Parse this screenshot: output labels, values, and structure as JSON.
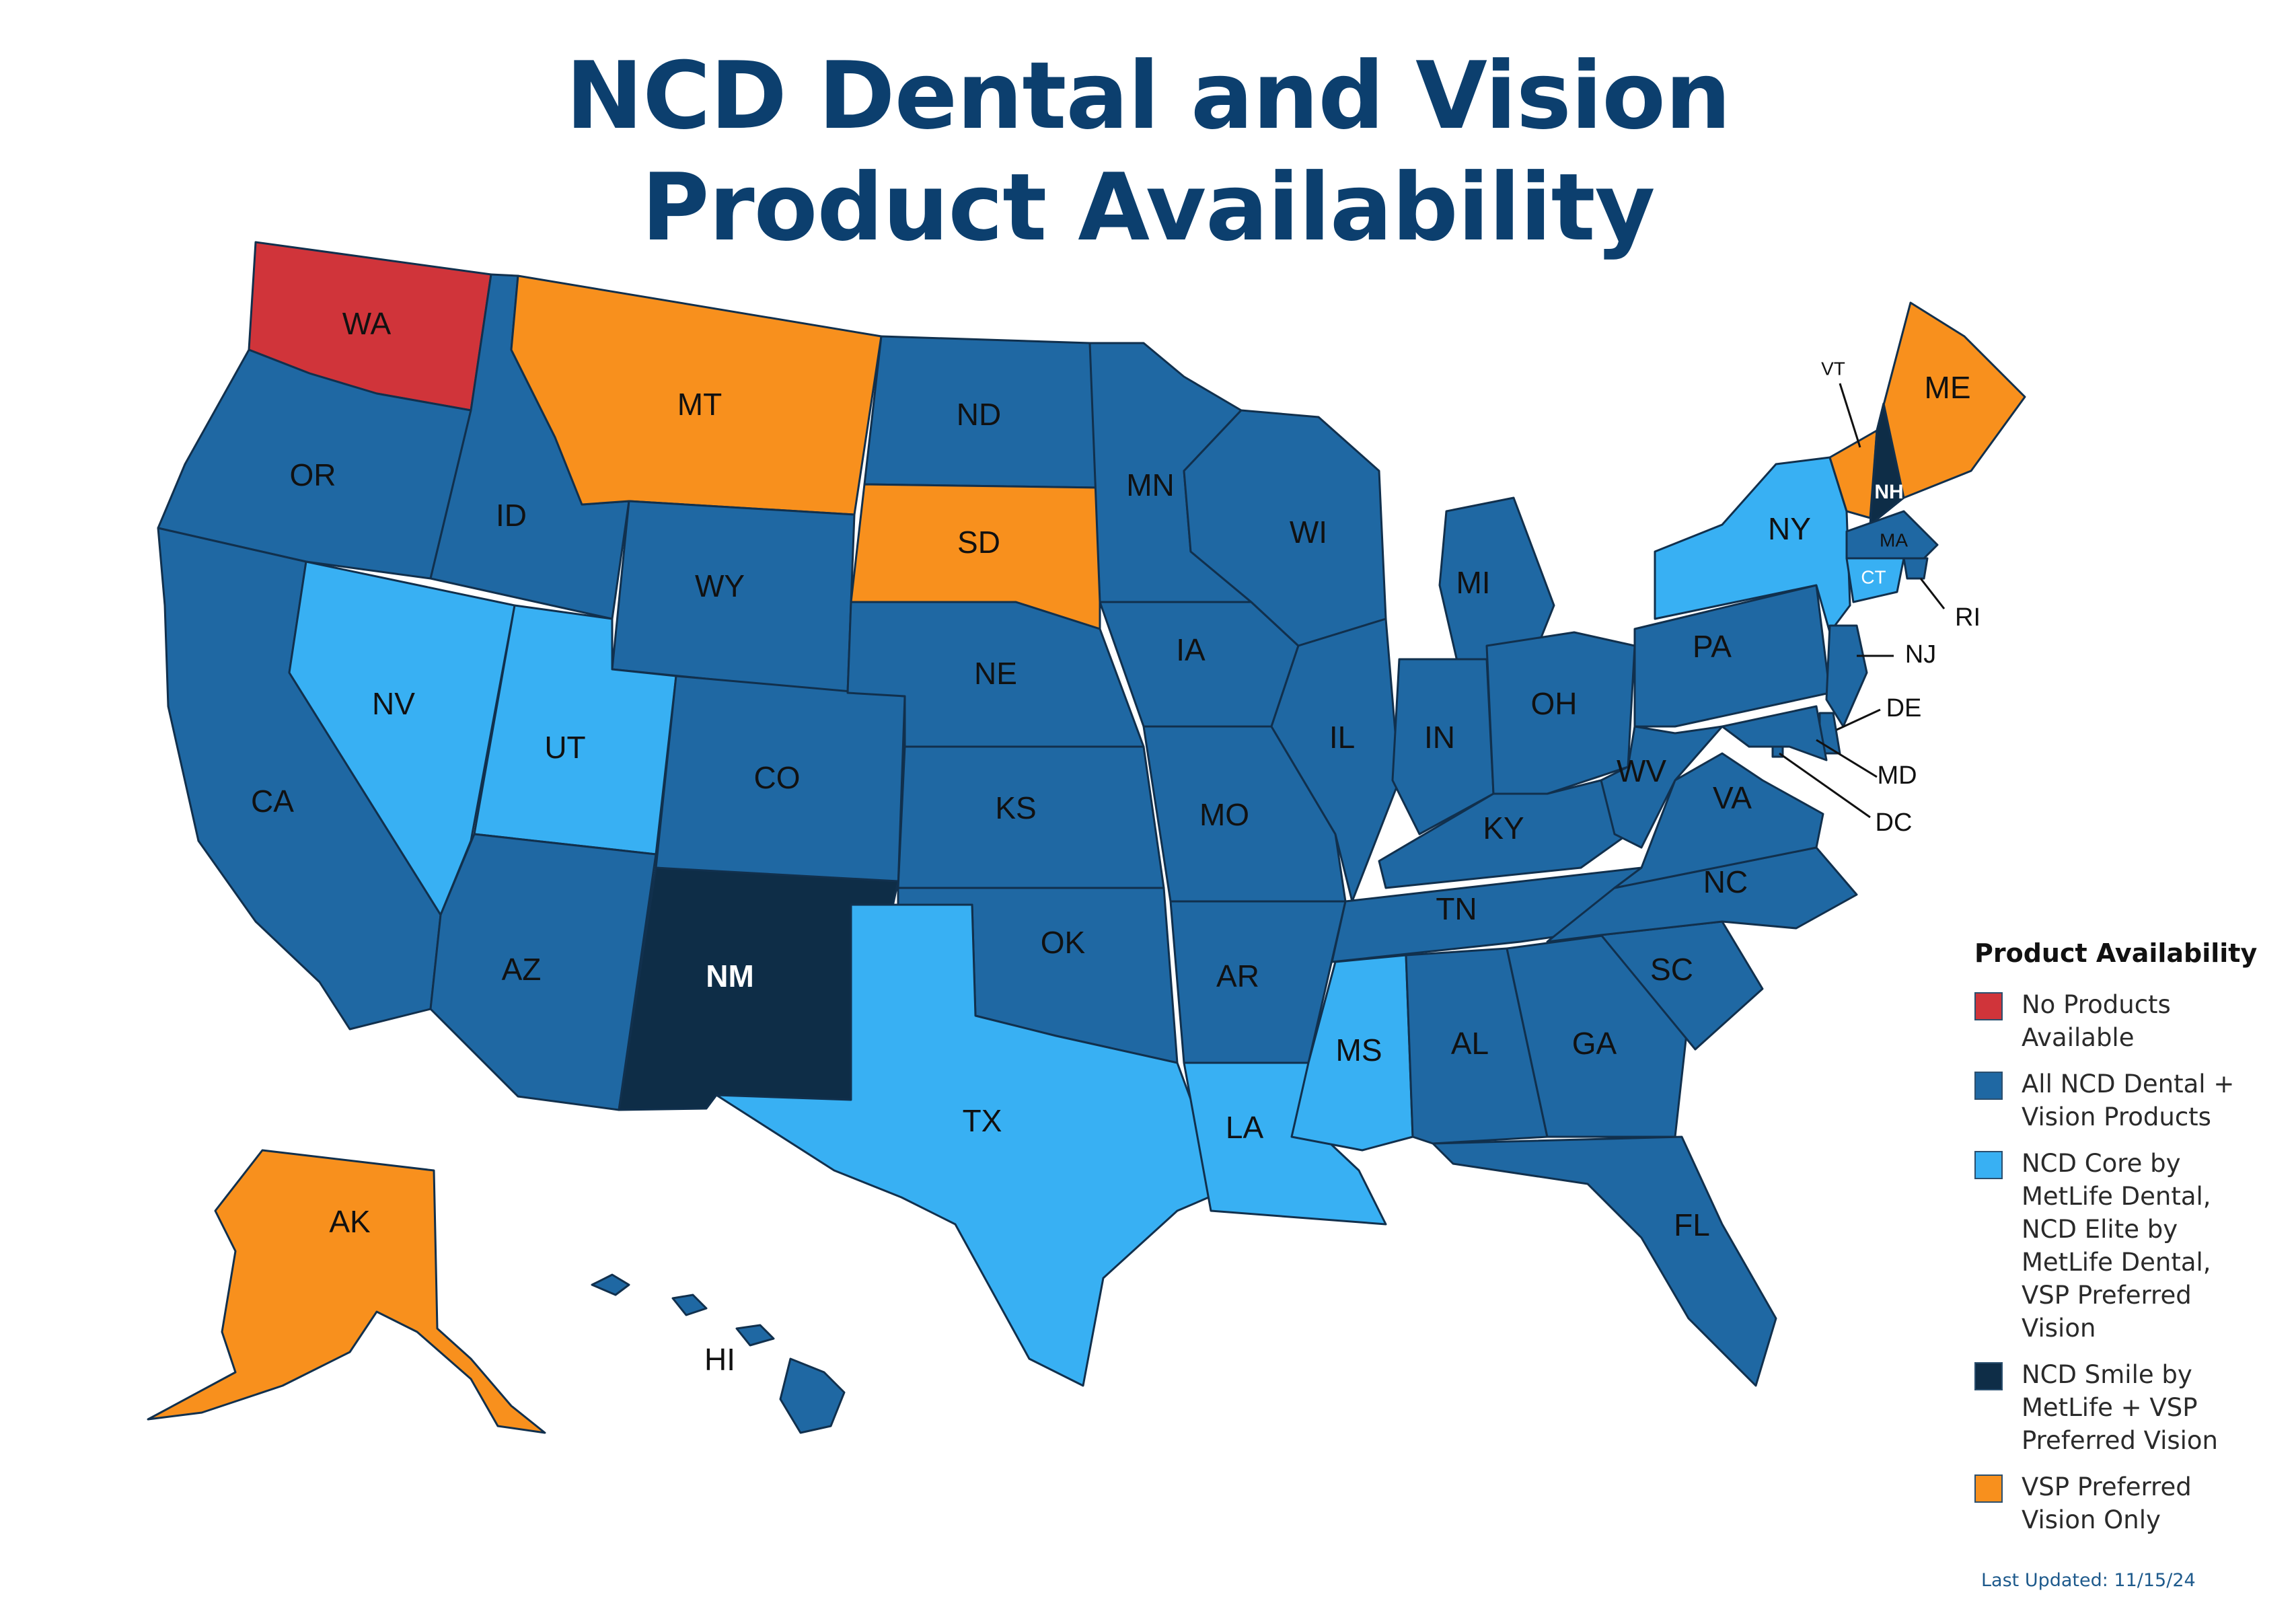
{
  "title": {
    "line1": "NCD Dental and Vision",
    "line2": "Product Availability"
  },
  "colors": {
    "no_products": "#d0343a",
    "all_products": "#1f68a3",
    "core_elite_vsp": "#38b0f3",
    "smile_vsp": "#0e2d47",
    "vsp_only": "#f8901d",
    "title": "#0c3f6e"
  },
  "legend": {
    "title": "Product Availability",
    "items": [
      {
        "key": "no_products",
        "label": "No Products\nAvailable"
      },
      {
        "key": "all_products",
        "label": "All NCD Dental +\nVision Products"
      },
      {
        "key": "core_elite_vsp",
        "label": "NCD Core by\nMetLife Dental,\nNCD Elite by\nMetLife Dental,\nVSP Preferred\nVision"
      },
      {
        "key": "smile_vsp",
        "label": "NCD Smile by\nMetLife + VSP\nPreferred Vision"
      },
      {
        "key": "vsp_only",
        "label": "VSP Preferred\nVision Only"
      }
    ]
  },
  "states": [
    {
      "abbr": "WA",
      "category": "no_products"
    },
    {
      "abbr": "OR",
      "category": "all_products"
    },
    {
      "abbr": "CA",
      "category": "all_products"
    },
    {
      "abbr": "ID",
      "category": "all_products"
    },
    {
      "abbr": "NV",
      "category": "core_elite_vsp"
    },
    {
      "abbr": "MT",
      "category": "vsp_only"
    },
    {
      "abbr": "WY",
      "category": "all_products"
    },
    {
      "abbr": "UT",
      "category": "core_elite_vsp"
    },
    {
      "abbr": "AZ",
      "category": "all_products"
    },
    {
      "abbr": "CO",
      "category": "all_products"
    },
    {
      "abbr": "NM",
      "category": "smile_vsp"
    },
    {
      "abbr": "ND",
      "category": "all_products"
    },
    {
      "abbr": "SD",
      "category": "vsp_only"
    },
    {
      "abbr": "NE",
      "category": "all_products"
    },
    {
      "abbr": "KS",
      "category": "all_products"
    },
    {
      "abbr": "OK",
      "category": "all_products"
    },
    {
      "abbr": "TX",
      "category": "core_elite_vsp"
    },
    {
      "abbr": "MN",
      "category": "all_products"
    },
    {
      "abbr": "IA",
      "category": "all_products"
    },
    {
      "abbr": "MO",
      "category": "all_products"
    },
    {
      "abbr": "AR",
      "category": "all_products"
    },
    {
      "abbr": "LA",
      "category": "core_elite_vsp"
    },
    {
      "abbr": "WI",
      "category": "all_products"
    },
    {
      "abbr": "IL",
      "category": "all_products"
    },
    {
      "abbr": "MI",
      "category": "all_products"
    },
    {
      "abbr": "IN",
      "category": "all_products"
    },
    {
      "abbr": "OH",
      "category": "all_products"
    },
    {
      "abbr": "KY",
      "category": "all_products"
    },
    {
      "abbr": "TN",
      "category": "all_products"
    },
    {
      "abbr": "MS",
      "category": "core_elite_vsp"
    },
    {
      "abbr": "AL",
      "category": "all_products"
    },
    {
      "abbr": "GA",
      "category": "all_products"
    },
    {
      "abbr": "FL",
      "category": "all_products"
    },
    {
      "abbr": "SC",
      "category": "all_products"
    },
    {
      "abbr": "NC",
      "category": "all_products"
    },
    {
      "abbr": "VA",
      "category": "all_products"
    },
    {
      "abbr": "WV",
      "category": "all_products"
    },
    {
      "abbr": "PA",
      "category": "all_products"
    },
    {
      "abbr": "NY",
      "category": "core_elite_vsp"
    },
    {
      "abbr": "VT",
      "category": "vsp_only"
    },
    {
      "abbr": "NH",
      "category": "smile_vsp"
    },
    {
      "abbr": "ME",
      "category": "vsp_only"
    },
    {
      "abbr": "MA",
      "category": "all_products"
    },
    {
      "abbr": "RI",
      "category": "all_products"
    },
    {
      "abbr": "CT",
      "category": "core_elite_vsp"
    },
    {
      "abbr": "NJ",
      "category": "all_products"
    },
    {
      "abbr": "DE",
      "category": "all_products"
    },
    {
      "abbr": "MD",
      "category": "all_products"
    },
    {
      "abbr": "DC",
      "category": "all_products"
    },
    {
      "abbr": "AK",
      "category": "vsp_only"
    },
    {
      "abbr": "HI",
      "category": "all_products"
    }
  ],
  "last_updated": "Last Updated: 11/15/24"
}
